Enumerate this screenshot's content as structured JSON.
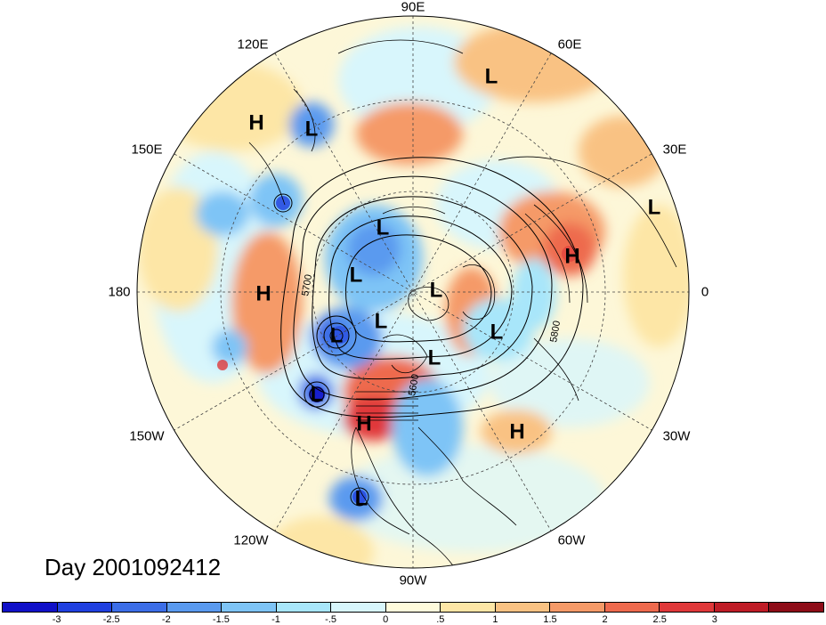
{
  "meridian_labels": {
    "90E": "90E",
    "120E": "120E",
    "60E": "60E",
    "150E": "150E",
    "30E": "30E",
    "180": "180",
    "0": "0",
    "150W": "150W",
    "30W": "30W",
    "120W": "120W",
    "60W": "60W",
    "90W": "90W"
  },
  "pressure_centers": [
    {
      "id": "h-pacific-north",
      "text": "H"
    },
    {
      "id": "l-kamchatka",
      "text": "L"
    },
    {
      "id": "l-central-asia",
      "text": "L"
    },
    {
      "id": "l-north-atlantic-east",
      "text": "L"
    },
    {
      "id": "l-siberia",
      "text": "L"
    },
    {
      "id": "h-europe",
      "text": "H"
    },
    {
      "id": "l-east-siberia",
      "text": "L"
    },
    {
      "id": "h-dateline",
      "text": "H"
    },
    {
      "id": "l-arctic-pole",
      "text": "L"
    },
    {
      "id": "l-greenland-sea",
      "text": "L"
    },
    {
      "id": "l-beaufort",
      "text": "L"
    },
    {
      "id": "l-canada",
      "text": "L"
    },
    {
      "id": "l-labrador",
      "text": "L"
    },
    {
      "id": "l-gulf-alaska",
      "text": "L"
    },
    {
      "id": "h-western-us",
      "text": "H"
    },
    {
      "id": "h-atlantic",
      "text": "H"
    },
    {
      "id": "l-mexico-pacific",
      "text": "L"
    }
  ],
  "contour_labels": {
    "c5700": "5700",
    "c5800": "5800",
    "c5600": "5600"
  },
  "day_label": "Day 2001092412",
  "colorbar": {
    "colors": [
      "#1010c8",
      "#2040e0",
      "#3c6ee8",
      "#5a9aef",
      "#7ec4f6",
      "#a8e6fa",
      "#d8f6fc",
      "#fffbdc",
      "#fde6a6",
      "#f9c283",
      "#f59a68",
      "#ee6a4e",
      "#e0383a",
      "#bf1c26",
      "#8e0c18"
    ],
    "ticks": [
      "-3",
      "-2.5",
      "-2",
      "-1.5",
      "-1",
      "-.5",
      "0",
      ".5",
      "1",
      "1.5",
      "2",
      "2.5",
      "3"
    ]
  }
}
